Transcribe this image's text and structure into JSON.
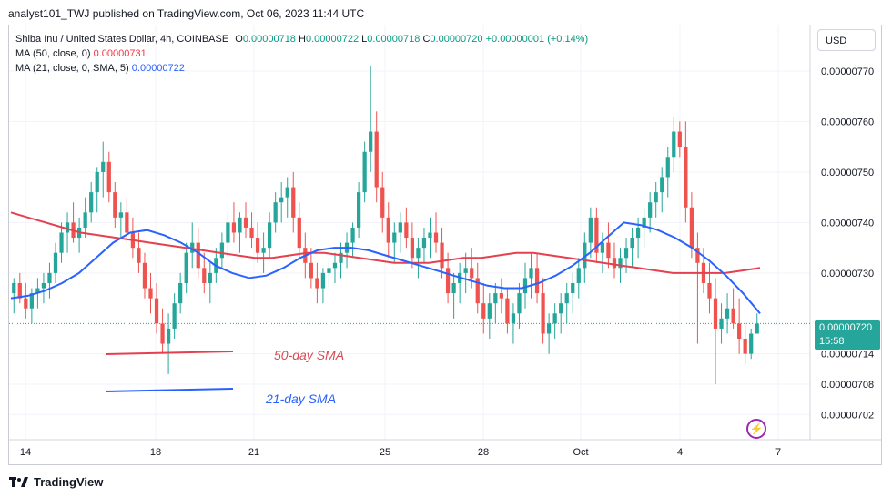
{
  "header": {
    "published": "analyst101_TWJ published on TradingView.com, Oct 06, 2023 11:44 UTC"
  },
  "legend": {
    "symbol": "Shiba Inu / United States Dollar, 4h, COINBASE",
    "o_label": "O",
    "o_value": "0.00000718",
    "h_label": "H",
    "h_value": "0.00000722",
    "l_label": "L",
    "l_value": "0.00000718",
    "c_label": "C",
    "c_value": "0.00000720",
    "change": "+0.00000001 (+0.14%)",
    "ma50_label": "MA (50, close, 0)",
    "ma50_value": "0.00000731",
    "ma21_label": "MA (21, close, 0, SMA, 5)",
    "ma21_value": "0.00000722"
  },
  "currency_button": "USD",
  "price_tag": {
    "price": "0.00000720",
    "countdown": "15:58"
  },
  "branding": {
    "logo_text": "TradingView"
  },
  "annotations": {
    "sma50_label": "50-day SMA",
    "sma21_label": "21-day SMA"
  },
  "colors": {
    "up": "#26a69a",
    "down": "#ef5350",
    "ma50": "#e5404f",
    "ma21": "#2962ff",
    "grid": "#f0f3fa"
  },
  "chart_data": {
    "type": "candlestick",
    "x_ticks": [
      "14",
      "18",
      "21",
      "25",
      "28",
      "Oct",
      "4",
      "7"
    ],
    "y_ticks": [
      "0.00000770",
      "0.00000760",
      "0.00000750",
      "0.00000740",
      "0.00000730",
      "0.00000714",
      "0.00000708",
      "0.00000702"
    ],
    "y_tick_values": [
      770,
      760,
      750,
      740,
      730,
      714,
      708,
      702
    ],
    "price_unit_scale": 1e-08,
    "ylim": [
      697,
      779
    ],
    "candles": [
      [
        726,
        729,
        722,
        728
      ],
      [
        728,
        730,
        724,
        725
      ],
      [
        725,
        728,
        721,
        723
      ],
      [
        723,
        727,
        720,
        726
      ],
      [
        726,
        729,
        723,
        727
      ],
      [
        727,
        730,
        724,
        728
      ],
      [
        728,
        732,
        725,
        730
      ],
      [
        730,
        736,
        728,
        734
      ],
      [
        734,
        740,
        732,
        738
      ],
      [
        738,
        742,
        734,
        740
      ],
      [
        740,
        744,
        736,
        737
      ],
      [
        737,
        741,
        734,
        739
      ],
      [
        739,
        745,
        737,
        742
      ],
      [
        742,
        748,
        740,
        746
      ],
      [
        746,
        751,
        742,
        750
      ],
      [
        750,
        756,
        745,
        752
      ],
      [
        752,
        754,
        744,
        746
      ],
      [
        746,
        748,
        739,
        741
      ],
      [
        741,
        744,
        737,
        742
      ],
      [
        742,
        745,
        736,
        738
      ],
      [
        738,
        741,
        733,
        735
      ],
      [
        735,
        738,
        730,
        732
      ],
      [
        732,
        734,
        725,
        727
      ],
      [
        727,
        730,
        722,
        725
      ],
      [
        725,
        728,
        718,
        720
      ],
      [
        720,
        723,
        714,
        716
      ],
      [
        716,
        722,
        710,
        719
      ],
      [
        719,
        726,
        717,
        724
      ],
      [
        724,
        730,
        722,
        728
      ],
      [
        728,
        736,
        726,
        734
      ],
      [
        734,
        740,
        731,
        736
      ],
      [
        736,
        739,
        729,
        731
      ],
      [
        731,
        734,
        726,
        728
      ],
      [
        728,
        732,
        724,
        730
      ],
      [
        730,
        735,
        728,
        733
      ],
      [
        733,
        738,
        731,
        736
      ],
      [
        736,
        742,
        733,
        740
      ],
      [
        740,
        744,
        736,
        738
      ],
      [
        738,
        742,
        734,
        741
      ],
      [
        741,
        744,
        737,
        739
      ],
      [
        739,
        742,
        735,
        737
      ],
      [
        737,
        740,
        732,
        734
      ],
      [
        734,
        738,
        730,
        735
      ],
      [
        735,
        742,
        733,
        740
      ],
      [
        740,
        746,
        738,
        744
      ],
      [
        744,
        748,
        740,
        745
      ],
      [
        745,
        749,
        741,
        747
      ],
      [
        747,
        750,
        738,
        741
      ],
      [
        741,
        744,
        733,
        735
      ],
      [
        735,
        738,
        729,
        732
      ],
      [
        732,
        735,
        727,
        729
      ],
      [
        729,
        732,
        724,
        727
      ],
      [
        727,
        731,
        724,
        730
      ],
      [
        730,
        733,
        727,
        731
      ],
      [
        731,
        734,
        728,
        732
      ],
      [
        732,
        736,
        729,
        734
      ],
      [
        734,
        738,
        731,
        736
      ],
      [
        736,
        740,
        733,
        739
      ],
      [
        739,
        748,
        737,
        746
      ],
      [
        746,
        756,
        744,
        754
      ],
      [
        754,
        771,
        750,
        758
      ],
      [
        758,
        762,
        744,
        747
      ],
      [
        747,
        750,
        738,
        741
      ],
      [
        741,
        744,
        733,
        736
      ],
      [
        736,
        740,
        732,
        738
      ],
      [
        738,
        742,
        734,
        740
      ],
      [
        740,
        743,
        735,
        737
      ],
      [
        737,
        740,
        731,
        733
      ],
      [
        733,
        737,
        729,
        735
      ],
      [
        735,
        739,
        732,
        737
      ],
      [
        737,
        741,
        733,
        738
      ],
      [
        738,
        742,
        734,
        736
      ],
      [
        736,
        739,
        729,
        731
      ],
      [
        731,
        734,
        724,
        726
      ],
      [
        726,
        730,
        721,
        728
      ],
      [
        728,
        732,
        724,
        730
      ],
      [
        730,
        734,
        726,
        731
      ],
      [
        731,
        735,
        727,
        729
      ],
      [
        729,
        732,
        722,
        724
      ],
      [
        724,
        728,
        718,
        721
      ],
      [
        721,
        726,
        717,
        724
      ],
      [
        724,
        728,
        720,
        726
      ],
      [
        726,
        729,
        722,
        725
      ],
      [
        725,
        727,
        718,
        720
      ],
      [
        720,
        724,
        716,
        722
      ],
      [
        722,
        728,
        719,
        726
      ],
      [
        726,
        732,
        723,
        729
      ],
      [
        729,
        734,
        725,
        731
      ],
      [
        731,
        734,
        724,
        726
      ],
      [
        726,
        729,
        716,
        718
      ],
      [
        718,
        722,
        714,
        720
      ],
      [
        720,
        724,
        717,
        722
      ],
      [
        722,
        726,
        718,
        724
      ],
      [
        724,
        728,
        720,
        726
      ],
      [
        726,
        730,
        722,
        728
      ],
      [
        728,
        733,
        725,
        731
      ],
      [
        731,
        738,
        728,
        736
      ],
      [
        736,
        743,
        733,
        741
      ],
      [
        741,
        743,
        732,
        734
      ],
      [
        734,
        738,
        730,
        736
      ],
      [
        736,
        740,
        731,
        733
      ],
      [
        733,
        736,
        729,
        731
      ],
      [
        731,
        735,
        728,
        733
      ],
      [
        733,
        737,
        730,
        735
      ],
      [
        735,
        739,
        731,
        737
      ],
      [
        737,
        741,
        733,
        739
      ],
      [
        739,
        743,
        735,
        741
      ],
      [
        741,
        746,
        738,
        744
      ],
      [
        744,
        748,
        741,
        746
      ],
      [
        746,
        751,
        742,
        749
      ],
      [
        749,
        755,
        745,
        753
      ],
      [
        753,
        761,
        750,
        758
      ],
      [
        758,
        760,
        753,
        755
      ],
      [
        755,
        760,
        740,
        743
      ],
      [
        743,
        746,
        733,
        735
      ],
      [
        735,
        738,
        716,
        732
      ],
      [
        732,
        735,
        726,
        728
      ],
      [
        728,
        732,
        722,
        725
      ],
      [
        725,
        729,
        708,
        719
      ],
      [
        719,
        724,
        716,
        721
      ],
      [
        721,
        726,
        718,
        723
      ],
      [
        723,
        727,
        719,
        720
      ],
      [
        720,
        725,
        714,
        717
      ],
      [
        717,
        720,
        712,
        714
      ],
      [
        714,
        719,
        713,
        718
      ],
      [
        718,
        722,
        718,
        720
      ]
    ],
    "ma50": [
      742,
      741,
      740,
      739,
      738,
      737.5,
      737,
      736.5,
      736,
      735.5,
      735,
      734.5,
      734,
      733.5,
      733,
      733,
      733.5,
      734,
      734,
      733.5,
      733,
      732.5,
      732,
      732,
      732,
      732.5,
      733,
      733,
      733.5,
      734,
      734,
      733.5,
      733,
      732.5,
      732,
      731.5,
      731,
      730.5,
      730,
      730,
      730,
      730,
      730.5,
      731
    ],
    "ma21": [
      725,
      725.5,
      726.5,
      728,
      730,
      733,
      736,
      738,
      738.5,
      737.5,
      736,
      734,
      731.5,
      730,
      729,
      729.5,
      731,
      733,
      734.5,
      735,
      735,
      734.5,
      733.5,
      732.5,
      731.5,
      730.5,
      729.5,
      728.5,
      727.5,
      727,
      727,
      728,
      729.5,
      731.5,
      734,
      737,
      740,
      739.5,
      738.5,
      737,
      735,
      732.5,
      729.5,
      726,
      722
    ]
  }
}
